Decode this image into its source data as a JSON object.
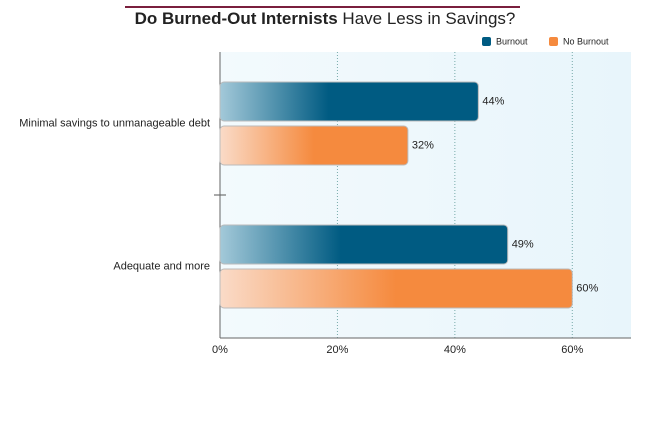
{
  "chart_data": {
    "type": "bar",
    "orientation": "horizontal",
    "title": [
      "Do Burned-Out Internists",
      "Have Less in Savings?"
    ],
    "categories": [
      "Minimal savings to unmanageable debt",
      "Adequate and more"
    ],
    "series": [
      {
        "name": "Burnout",
        "color": "#005b82",
        "values": [
          44,
          49
        ],
        "value_labels": [
          "44%",
          "49%"
        ]
      },
      {
        "name": "No Burnout",
        "color": "#f58a3e",
        "values": [
          32,
          60
        ],
        "value_labels": [
          "32%",
          "60%"
        ]
      }
    ],
    "xlim": [
      0,
      70
    ],
    "xticks": [
      {
        "value": 0,
        "label": "0%"
      },
      {
        "value": 20,
        "label": "20%"
      },
      {
        "value": 40,
        "label": "40%"
      },
      {
        "value": 60,
        "label": "60%"
      }
    ],
    "grid": true,
    "legend": "top-right"
  }
}
